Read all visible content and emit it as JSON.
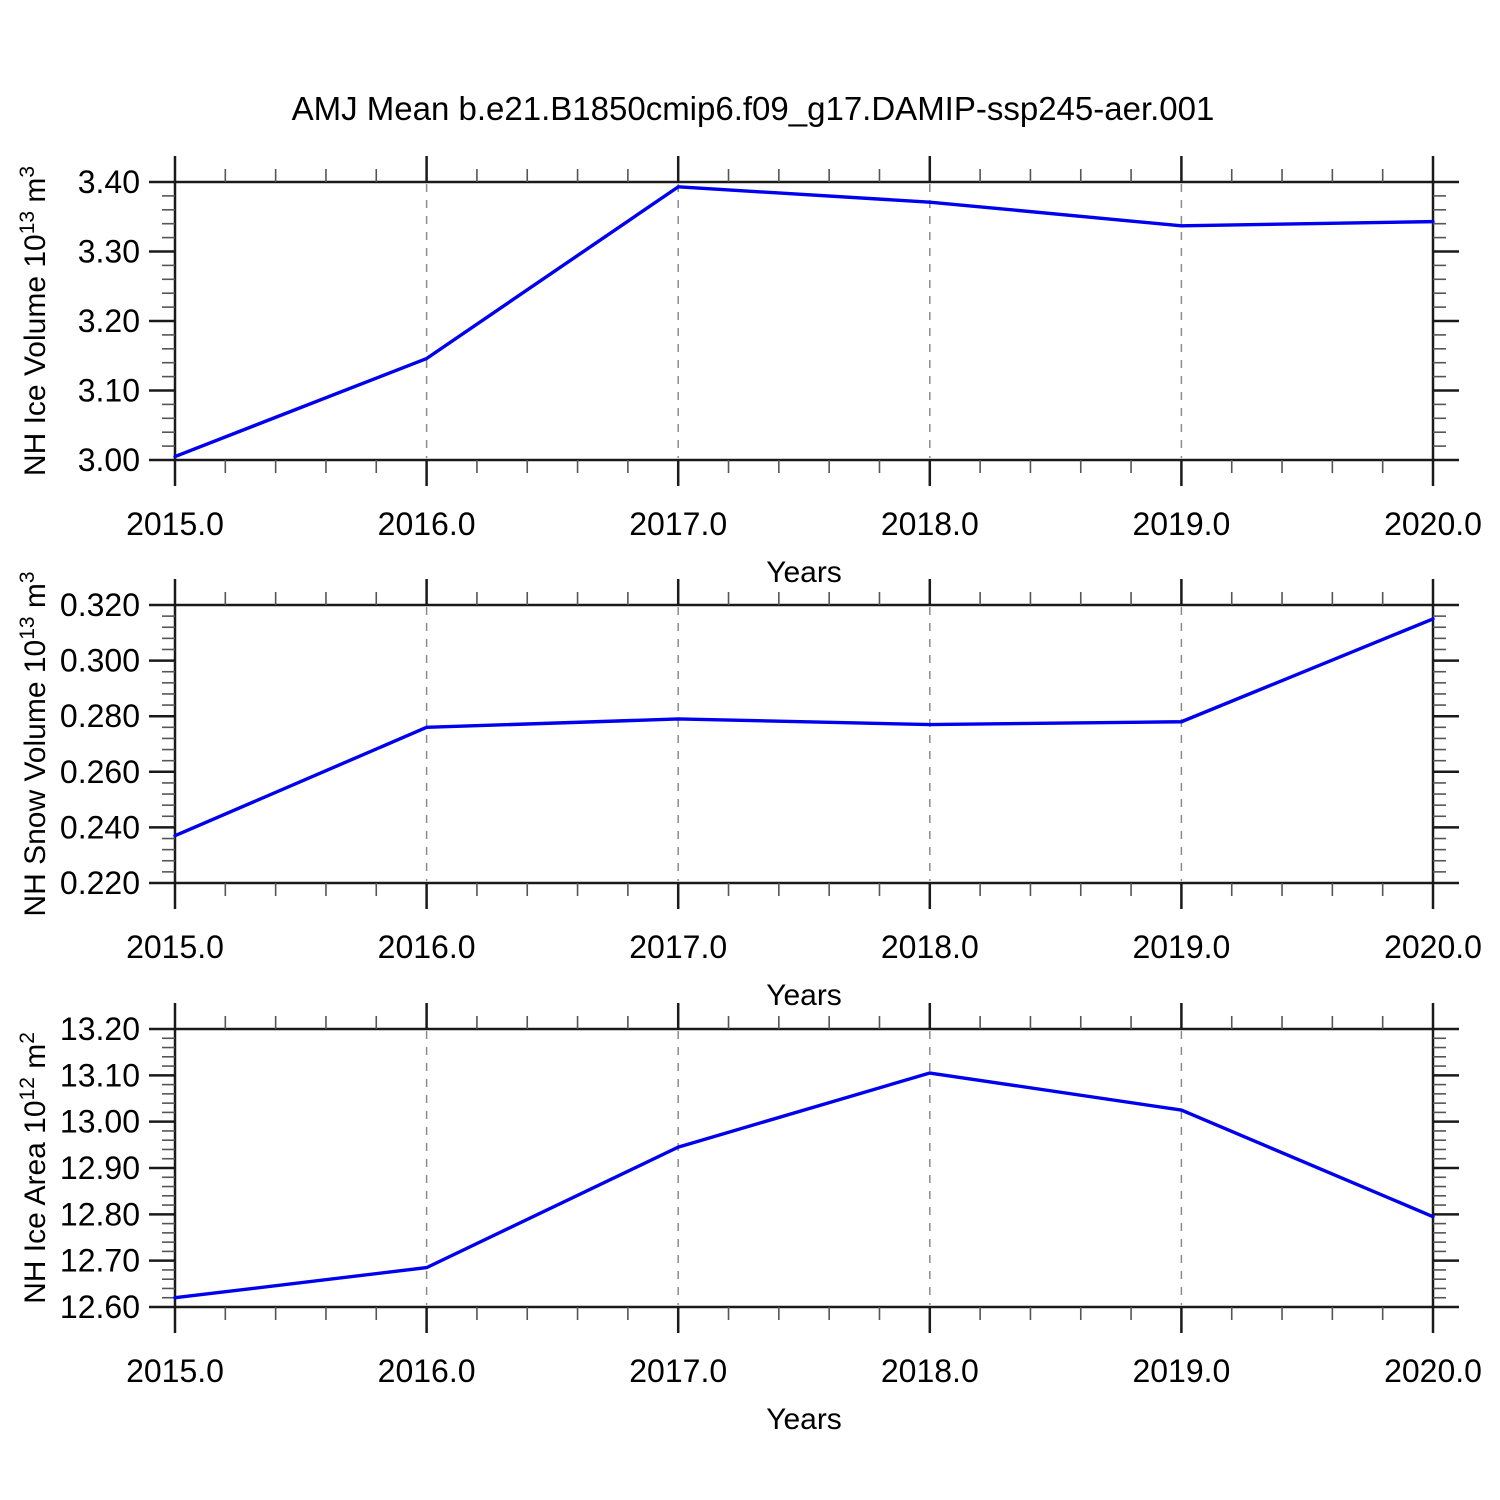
{
  "page": {
    "title": "AMJ Mean b.e21.B1850cmip6.f09_g17.DAMIP-ssp245-aer.001"
  },
  "colors": {
    "line": "#0000ee",
    "grid": "#8c8c8c",
    "axis": "#1a1a1a",
    "minor_tick": "#555555",
    "text": "#000000"
  },
  "chart_data": [
    {
      "type": "line",
      "title": "AMJ Mean b.e21.B1850cmip6.f09_g17.DAMIP-ssp245-aer.001",
      "panel": "nh-ice-volume",
      "ylabel_text": "NH Ice Volume 10^13 m^3",
      "ylabel_parts": [
        {
          "t": "NH Ice Volume 10"
        },
        {
          "t": "13",
          "sup": true
        },
        {
          "t": " m"
        },
        {
          "t": "3",
          "sup": true
        }
      ],
      "xlabel": "Years",
      "x": [
        2015.0,
        2016.0,
        2017.0,
        2018.0,
        2019.0,
        2020.0
      ],
      "values": [
        3.005,
        3.146,
        3.393,
        3.371,
        3.337,
        3.343
      ],
      "xaxis": {
        "min": 2015.0,
        "max": 2020.0,
        "minor_step": 0.2,
        "major": [
          {
            "v": 2015.0,
            "label": "2015.0"
          },
          {
            "v": 2016.0,
            "label": "2016.0"
          },
          {
            "v": 2017.0,
            "label": "2017.0"
          },
          {
            "v": 2018.0,
            "label": "2018.0"
          },
          {
            "v": 2019.0,
            "label": "2019.0"
          },
          {
            "v": 2020.0,
            "label": "2020.0"
          }
        ]
      },
      "yaxis": {
        "min": 3.0,
        "max": 3.4,
        "minor_step": 0.02,
        "major": [
          {
            "v": 3.0,
            "label": "3.00"
          },
          {
            "v": 3.1,
            "label": "3.10"
          },
          {
            "v": 3.2,
            "label": "3.20"
          },
          {
            "v": 3.3,
            "label": "3.30"
          },
          {
            "v": 3.4,
            "label": "3.40"
          }
        ]
      },
      "gridlines_x": [
        2016.0,
        2017.0,
        2018.0,
        2019.0
      ]
    },
    {
      "type": "line",
      "title": "",
      "panel": "nh-snow-volume",
      "ylabel_text": "NH Snow Volume 10^13 m^3",
      "ylabel_parts": [
        {
          "t": "NH Snow Volume 10"
        },
        {
          "t": "13",
          "sup": true
        },
        {
          "t": " m"
        },
        {
          "t": "3",
          "sup": true
        }
      ],
      "xlabel": "Years",
      "x": [
        2015.0,
        2016.0,
        2017.0,
        2018.0,
        2019.0,
        2020.0
      ],
      "values": [
        0.237,
        0.276,
        0.279,
        0.277,
        0.278,
        0.315
      ],
      "xaxis": {
        "min": 2015.0,
        "max": 2020.0,
        "minor_step": 0.2,
        "major": [
          {
            "v": 2015.0,
            "label": "2015.0"
          },
          {
            "v": 2016.0,
            "label": "2016.0"
          },
          {
            "v": 2017.0,
            "label": "2017.0"
          },
          {
            "v": 2018.0,
            "label": "2018.0"
          },
          {
            "v": 2019.0,
            "label": "2019.0"
          },
          {
            "v": 2020.0,
            "label": "2020.0"
          }
        ]
      },
      "yaxis": {
        "min": 0.22,
        "max": 0.32,
        "minor_step": 0.004,
        "major": [
          {
            "v": 0.22,
            "label": "0.220"
          },
          {
            "v": 0.24,
            "label": "0.240"
          },
          {
            "v": 0.26,
            "label": "0.260"
          },
          {
            "v": 0.28,
            "label": "0.280"
          },
          {
            "v": 0.3,
            "label": "0.300"
          },
          {
            "v": 0.32,
            "label": "0.320"
          }
        ]
      },
      "gridlines_x": [
        2016.0,
        2017.0,
        2018.0,
        2019.0
      ]
    },
    {
      "type": "line",
      "title": "",
      "panel": "nh-ice-area",
      "ylabel_text": "NH Ice Area 10^12 m^2",
      "ylabel_parts": [
        {
          "t": "NH Ice Area 10"
        },
        {
          "t": "12",
          "sup": true
        },
        {
          "t": " m"
        },
        {
          "t": "2",
          "sup": true
        }
      ],
      "xlabel": "Years",
      "x": [
        2015.0,
        2016.0,
        2017.0,
        2018.0,
        2019.0,
        2020.0
      ],
      "values": [
        12.62,
        12.685,
        12.945,
        13.105,
        13.025,
        12.795
      ],
      "xaxis": {
        "min": 2015.0,
        "max": 2020.0,
        "minor_step": 0.2,
        "major": [
          {
            "v": 2015.0,
            "label": "2015.0"
          },
          {
            "v": 2016.0,
            "label": "2016.0"
          },
          {
            "v": 2017.0,
            "label": "2017.0"
          },
          {
            "v": 2018.0,
            "label": "2018.0"
          },
          {
            "v": 2019.0,
            "label": "2019.0"
          },
          {
            "v": 2020.0,
            "label": "2020.0"
          }
        ]
      },
      "yaxis": {
        "min": 12.6,
        "max": 13.2,
        "minor_step": 0.02,
        "major": [
          {
            "v": 12.6,
            "label": "12.60"
          },
          {
            "v": 12.7,
            "label": "12.70"
          },
          {
            "v": 12.8,
            "label": "12.80"
          },
          {
            "v": 12.9,
            "label": "12.90"
          },
          {
            "v": 13.0,
            "label": "13.00"
          },
          {
            "v": 13.1,
            "label": "13.10"
          },
          {
            "v": 13.2,
            "label": "13.20"
          }
        ]
      },
      "gridlines_x": [
        2016.0,
        2017.0,
        2018.0,
        2019.0
      ]
    }
  ]
}
